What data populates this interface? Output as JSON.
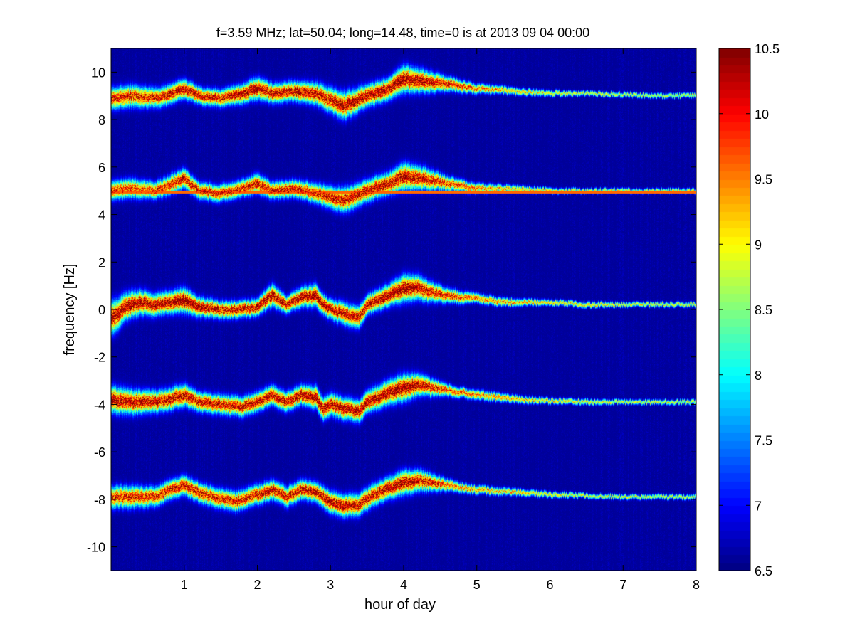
{
  "chart_data": {
    "type": "heatmap",
    "title": "f=3.59 MHz;  lat=50.04; long=14.48, time=0 is at 2013 09 04 00:00",
    "xlabel": "hour of day",
    "ylabel": "frequency [Hz]",
    "xlim": [
      0,
      8
    ],
    "ylim": [
      -11,
      11
    ],
    "x_ticks": [
      1,
      2,
      3,
      4,
      5,
      6,
      7,
      8
    ],
    "y_ticks": [
      -10,
      -8,
      -6,
      -4,
      -2,
      0,
      2,
      4,
      6,
      8,
      10
    ],
    "colorbar": {
      "lim": [
        6.5,
        10.5
      ],
      "ticks": [
        6.5,
        7,
        7.5,
        8,
        8.5,
        9,
        9.5,
        10,
        10.5
      ],
      "colormap": "jet"
    },
    "background_value": 6.6,
    "constant_line": {
      "freq": 4.95,
      "value": 9.6
    },
    "traces": [
      {
        "name": "band_+9",
        "hours": [
          0,
          0.3,
          0.6,
          0.85,
          1.0,
          1.2,
          1.5,
          1.8,
          2.0,
          2.2,
          2.5,
          2.8,
          3.0,
          3.2,
          3.5,
          3.8,
          4.0,
          4.3,
          4.6,
          5.0,
          5.5,
          6.0,
          6.5,
          7.0,
          7.5,
          8.0
        ],
        "freq": [
          8.9,
          9.0,
          8.9,
          9.1,
          9.3,
          9.0,
          8.9,
          9.1,
          9.3,
          9.1,
          9.2,
          9.1,
          8.8,
          8.6,
          9.0,
          9.3,
          9.7,
          9.6,
          9.5,
          9.3,
          9.2,
          9.1,
          9.1,
          9.05,
          9.0,
          9.0
        ],
        "width": [
          0.45,
          0.45,
          0.4,
          0.4,
          0.4,
          0.35,
          0.35,
          0.4,
          0.45,
          0.4,
          0.4,
          0.45,
          0.5,
          0.55,
          0.45,
          0.45,
          0.55,
          0.45,
          0.3,
          0.2,
          0.15,
          0.12,
          0.1,
          0.1,
          0.1,
          0.1
        ],
        "peak": [
          10.0,
          10.0,
          10.0,
          10.2,
          10.3,
          10.2,
          10.1,
          10.3,
          10.4,
          10.2,
          10.3,
          10.2,
          10.2,
          10.3,
          10.3,
          10.4,
          10.5,
          10.3,
          10.0,
          9.6,
          9.2,
          9.0,
          8.9,
          8.9,
          8.8,
          8.8
        ]
      },
      {
        "name": "band_+5",
        "hours": [
          0,
          0.3,
          0.6,
          0.85,
          1.0,
          1.2,
          1.5,
          1.8,
          2.0,
          2.2,
          2.5,
          2.8,
          3.0,
          3.2,
          3.5,
          3.8,
          4.0,
          4.3,
          4.6,
          5.0,
          5.5,
          6.0,
          6.5,
          7.0,
          7.5,
          8.0
        ],
        "freq": [
          5.0,
          5.1,
          5.0,
          5.3,
          5.5,
          5.0,
          4.9,
          5.1,
          5.3,
          5.0,
          5.1,
          4.9,
          4.7,
          4.6,
          5.0,
          5.3,
          5.6,
          5.5,
          5.3,
          5.1,
          5.1,
          5.0,
          5.0,
          5.0,
          5.0,
          5.0
        ],
        "width": [
          0.4,
          0.4,
          0.35,
          0.4,
          0.4,
          0.35,
          0.35,
          0.35,
          0.4,
          0.35,
          0.35,
          0.4,
          0.45,
          0.5,
          0.45,
          0.45,
          0.55,
          0.45,
          0.3,
          0.2,
          0.15,
          0.12,
          0.1,
          0.1,
          0.1,
          0.1
        ],
        "peak": [
          9.8,
          9.8,
          9.8,
          10.0,
          10.2,
          10.0,
          9.9,
          10.0,
          10.2,
          10.0,
          10.1,
          10.0,
          10.1,
          10.2,
          10.2,
          10.3,
          10.4,
          10.2,
          9.8,
          9.5,
          9.2,
          9.0,
          8.9,
          8.9,
          8.8,
          8.8
        ]
      },
      {
        "name": "band_0",
        "hours": [
          0,
          0.2,
          0.4,
          0.6,
          0.8,
          1.0,
          1.2,
          1.5,
          1.8,
          2.0,
          2.2,
          2.4,
          2.6,
          2.8,
          2.9,
          3.0,
          3.2,
          3.4,
          3.5,
          3.8,
          4.0,
          4.2,
          4.4,
          4.6,
          4.8,
          5.0,
          5.3,
          5.6,
          6.0,
          6.5,
          7.0,
          7.5,
          8.0
        ],
        "freq": [
          -0.4,
          0.1,
          0.3,
          0.2,
          0.3,
          0.4,
          0.1,
          0.0,
          0.0,
          0.1,
          0.6,
          0.2,
          0.5,
          0.6,
          0.2,
          0.0,
          -0.2,
          -0.3,
          0.2,
          0.6,
          0.9,
          0.9,
          0.7,
          0.6,
          0.5,
          0.5,
          0.3,
          0.3,
          0.3,
          0.2,
          0.2,
          0.2,
          0.2
        ],
        "width": [
          0.7,
          0.55,
          0.5,
          0.45,
          0.45,
          0.5,
          0.4,
          0.35,
          0.35,
          0.35,
          0.45,
          0.35,
          0.4,
          0.45,
          0.4,
          0.4,
          0.45,
          0.45,
          0.4,
          0.45,
          0.55,
          0.5,
          0.4,
          0.3,
          0.25,
          0.2,
          0.18,
          0.15,
          0.12,
          0.12,
          0.1,
          0.1,
          0.1
        ],
        "peak": [
          10.2,
          10.4,
          10.4,
          10.3,
          10.4,
          10.5,
          10.3,
          10.2,
          10.2,
          10.2,
          10.4,
          10.2,
          10.3,
          10.4,
          10.4,
          10.2,
          10.2,
          10.2,
          10.3,
          10.4,
          10.5,
          10.3,
          10.0,
          9.9,
          9.7,
          9.6,
          9.4,
          9.3,
          9.2,
          9.1,
          9.0,
          9.0,
          8.9
        ]
      },
      {
        "name": "band_-4",
        "hours": [
          0,
          0.3,
          0.6,
          0.8,
          1.0,
          1.2,
          1.5,
          1.8,
          2.0,
          2.2,
          2.4,
          2.6,
          2.8,
          2.9,
          3.0,
          3.2,
          3.4,
          3.5,
          3.8,
          4.0,
          4.2,
          4.4,
          4.6,
          4.8,
          5.0,
          5.3,
          5.6,
          6.0,
          6.5,
          7.0,
          7.5,
          8.0
        ],
        "freq": [
          -3.8,
          -3.9,
          -3.9,
          -3.8,
          -3.6,
          -3.9,
          -4.0,
          -4.1,
          -3.9,
          -3.6,
          -3.9,
          -3.6,
          -3.7,
          -4.2,
          -4.0,
          -4.2,
          -4.3,
          -3.9,
          -3.5,
          -3.3,
          -3.2,
          -3.3,
          -3.4,
          -3.5,
          -3.6,
          -3.7,
          -3.8,
          -3.85,
          -3.9,
          -3.9,
          -3.9,
          -3.9
        ],
        "width": [
          0.55,
          0.5,
          0.45,
          0.45,
          0.45,
          0.4,
          0.4,
          0.4,
          0.4,
          0.4,
          0.4,
          0.4,
          0.45,
          0.45,
          0.45,
          0.45,
          0.45,
          0.45,
          0.5,
          0.55,
          0.45,
          0.35,
          0.25,
          0.2,
          0.2,
          0.18,
          0.15,
          0.12,
          0.12,
          0.1,
          0.1,
          0.1
        ],
        "peak": [
          10.3,
          10.3,
          10.2,
          10.2,
          10.3,
          10.2,
          10.1,
          10.2,
          10.2,
          10.3,
          10.2,
          10.3,
          10.4,
          10.4,
          10.3,
          10.3,
          10.3,
          10.3,
          10.4,
          10.5,
          10.3,
          10.0,
          9.8,
          9.6,
          9.5,
          9.4,
          9.3,
          9.1,
          9.0,
          8.9,
          8.9,
          8.9
        ]
      },
      {
        "name": "band_-8",
        "hours": [
          0,
          0.3,
          0.6,
          0.8,
          1.0,
          1.2,
          1.4,
          1.7,
          2.0,
          2.2,
          2.4,
          2.6,
          2.8,
          3.0,
          3.2,
          3.4,
          3.6,
          3.8,
          4.0,
          4.2,
          4.4,
          4.6,
          4.8,
          5.0,
          5.5,
          6.0,
          6.5,
          7.0,
          7.5,
          8.0
        ],
        "freq": [
          -7.9,
          -7.9,
          -7.9,
          -7.6,
          -7.4,
          -7.7,
          -7.9,
          -8.1,
          -7.8,
          -7.6,
          -7.9,
          -7.6,
          -7.7,
          -8.1,
          -8.3,
          -8.2,
          -7.8,
          -7.5,
          -7.3,
          -7.2,
          -7.3,
          -7.4,
          -7.5,
          -7.6,
          -7.7,
          -7.8,
          -7.85,
          -7.9,
          -7.9,
          -7.9
        ],
        "width": [
          0.45,
          0.45,
          0.4,
          0.4,
          0.4,
          0.4,
          0.4,
          0.4,
          0.4,
          0.4,
          0.4,
          0.4,
          0.4,
          0.45,
          0.45,
          0.45,
          0.45,
          0.45,
          0.5,
          0.45,
          0.35,
          0.25,
          0.2,
          0.18,
          0.15,
          0.12,
          0.1,
          0.1,
          0.1,
          0.1
        ],
        "peak": [
          10.0,
          10.0,
          10.0,
          10.1,
          10.2,
          10.1,
          10.0,
          10.1,
          10.1,
          10.2,
          10.1,
          10.2,
          10.2,
          10.3,
          10.3,
          10.2,
          10.2,
          10.3,
          10.4,
          10.2,
          10.0,
          9.7,
          9.5,
          9.3,
          9.2,
          9.0,
          8.9,
          8.9,
          8.8,
          8.8
        ]
      }
    ]
  }
}
